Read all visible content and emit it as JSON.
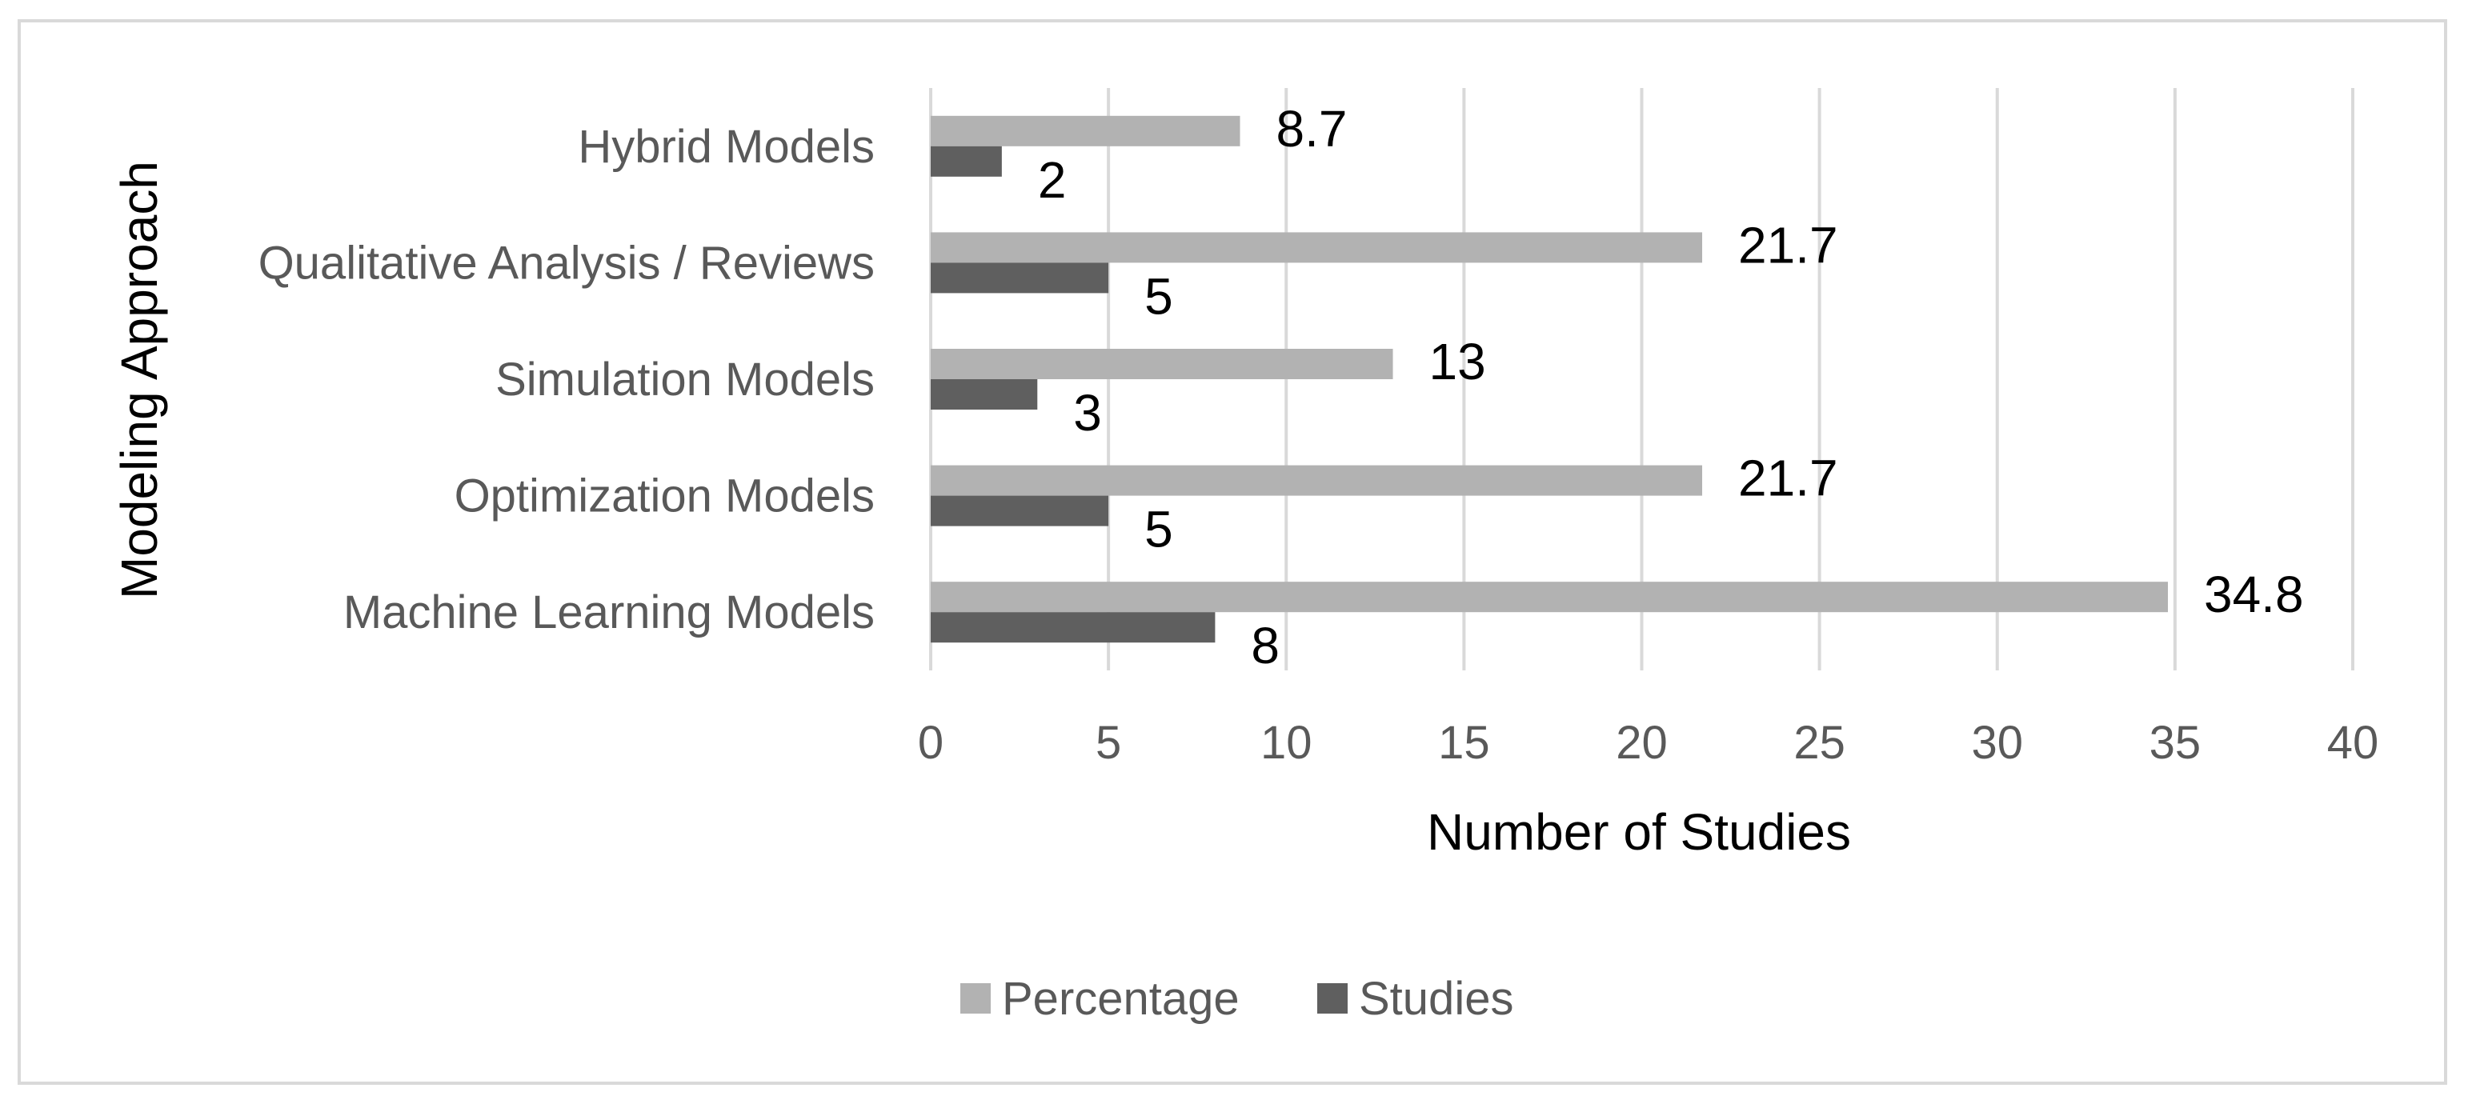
{
  "chart_data": {
    "type": "bar",
    "orientation": "horizontal",
    "title": "",
    "xlabel": "Number of Studies",
    "ylabel": "Modeling Approach",
    "categories": [
      "Machine Learning Models",
      "Optimization Models",
      "Simulation Models",
      "Qualitative Analysis / Reviews",
      "Hybrid Models"
    ],
    "series": [
      {
        "name": "Percentage",
        "color": "#b2b2b2",
        "values": [
          34.8,
          21.7,
          13,
          21.7,
          8.7
        ]
      },
      {
        "name": "Studies",
        "color": "#5f5f5f",
        "values": [
          8,
          5,
          3,
          5,
          2
        ]
      }
    ],
    "xlim": [
      0,
      40
    ],
    "xticks": [
      0,
      5,
      10,
      15,
      20,
      25,
      30,
      35,
      40
    ],
    "grid": "vertical",
    "legend_position": "bottom",
    "data_labels": true
  }
}
